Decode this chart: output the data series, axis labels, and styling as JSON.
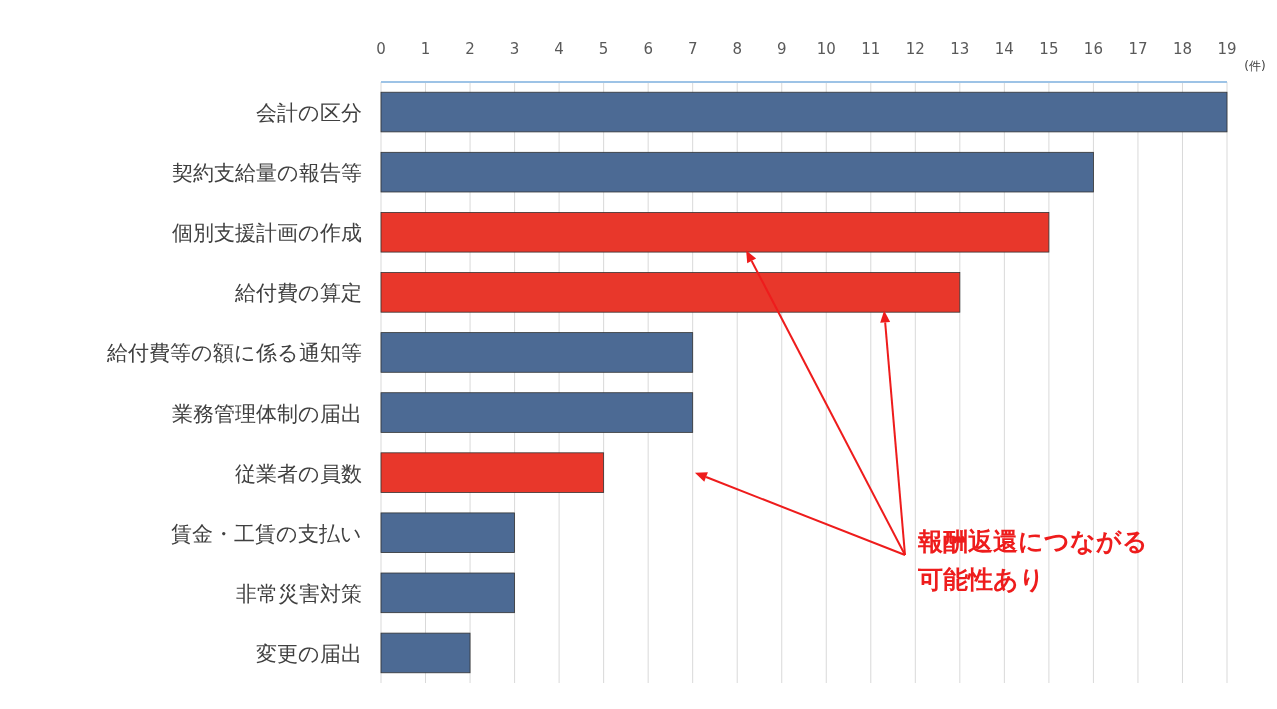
{
  "chart_data": {
    "type": "bar",
    "orientation": "horizontal",
    "xlabel": "(件)",
    "categories": [
      "会計の区分",
      "契約支給量の報告等",
      "個別支援計画の作成",
      "給付費の算定",
      "給付費等の額に係る通知等",
      "業務管理体制の届出",
      "従業者の員数",
      "賃金・工賃の支払い",
      "非常災害対策",
      "変更の届出"
    ],
    "values": [
      19,
      16,
      15,
      13,
      7,
      7,
      5,
      3,
      3,
      2
    ],
    "colors": [
      "#4c6a94",
      "#4c6a94",
      "#e8372b",
      "#e8372b",
      "#4c6a94",
      "#4c6a94",
      "#e8372b",
      "#4c6a94",
      "#4c6a94",
      "#4c6a94"
    ],
    "xlim": [
      0,
      19
    ],
    "xticks": [
      0,
      1,
      2,
      3,
      4,
      5,
      6,
      7,
      8,
      9,
      10,
      11,
      12,
      13,
      14,
      15,
      16,
      17,
      18,
      19
    ],
    "grid": "x",
    "annotations": [
      "報酬返還につながる可能性あり"
    ]
  }
}
